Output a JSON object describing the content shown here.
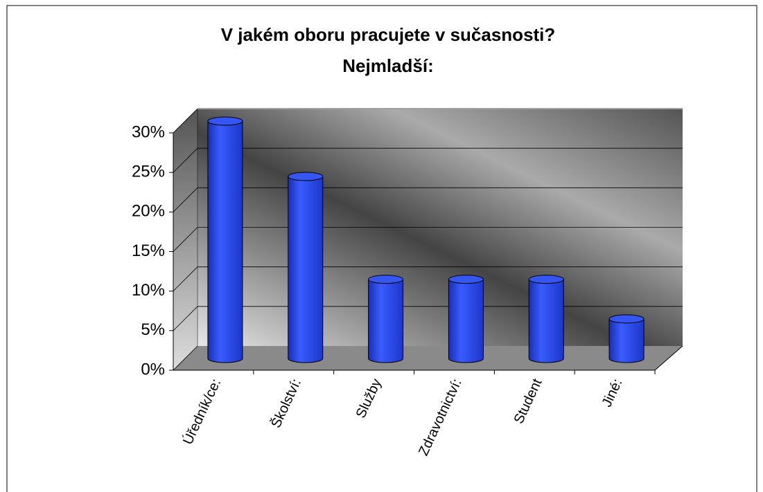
{
  "chart_data": {
    "type": "bar3d",
    "title": "V jakém oboru pracujete v sučasnosti?",
    "subtitle": "Nejmladší:",
    "categories": [
      "Úředník/ce:",
      "Školství:",
      "Služby",
      "Zdravotnictví:",
      "Student",
      "Jiné:"
    ],
    "values": [
      30,
      23,
      10,
      10,
      10,
      5
    ],
    "color": "#2f4fe0",
    "ylim": [
      0,
      30
    ],
    "yticks": [
      {
        "value": 0,
        "label": "0%"
      },
      {
        "value": 5,
        "label": "5%"
      },
      {
        "value": 10,
        "label": "10%"
      },
      {
        "value": 15,
        "label": "15%"
      },
      {
        "value": 20,
        "label": "20%"
      },
      {
        "value": 25,
        "label": "25%"
      },
      {
        "value": 30,
        "label": "30%"
      }
    ],
    "grid": true
  }
}
